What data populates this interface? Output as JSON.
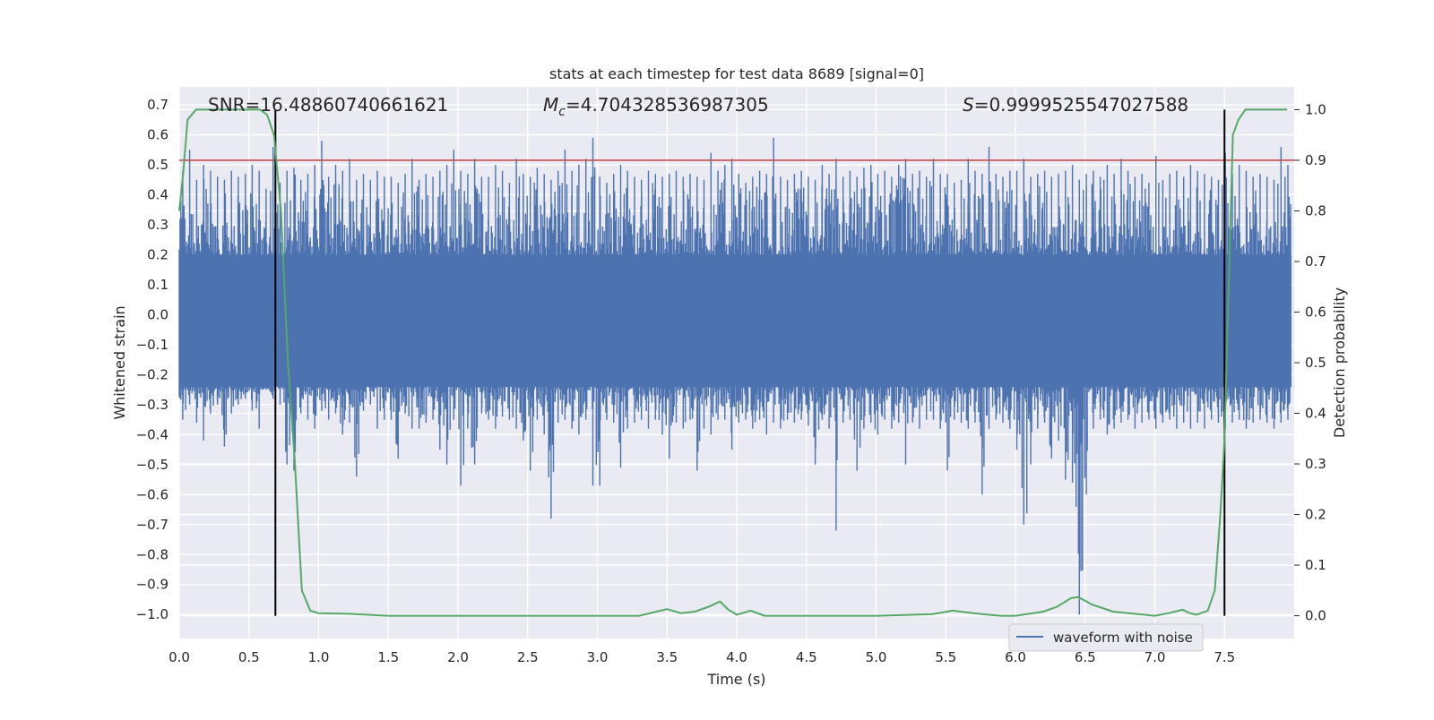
{
  "chart_data": {
    "type": "line",
    "title": "stats at each timestep for test data 8689 [signal=0]",
    "xlabel": "Time (s)",
    "ylabel": "Whitened strain",
    "y2label": "Detection probability",
    "xlim": [
      0.0,
      8.0
    ],
    "ylim": [
      -1.08,
      0.76
    ],
    "y2lim": [
      -0.045,
      1.045
    ],
    "x_ticks": [
      "0.0",
      "0.5",
      "1.0",
      "1.5",
      "2.0",
      "2.5",
      "3.0",
      "3.5",
      "4.0",
      "4.5",
      "5.0",
      "5.5",
      "6.0",
      "6.5",
      "7.0",
      "7.5"
    ],
    "y_ticks": [
      "0.7",
      "0.6",
      "0.5",
      "0.4",
      "0.3",
      "0.2",
      "0.1",
      "0.0",
      "−0.1",
      "−0.2",
      "−0.3",
      "−0.4",
      "−0.5",
      "−0.6",
      "−0.7",
      "−0.8",
      "−0.9",
      "−1.0"
    ],
    "y2_ticks": [
      "1.0",
      "0.9",
      "0.8",
      "0.7",
      "0.6",
      "0.5",
      "0.4",
      "0.3",
      "0.2",
      "0.1",
      "0.0"
    ],
    "grid": true,
    "legend_position": "lower-right",
    "annotations": {
      "snr": "SNR=16.48860740661621",
      "mc_symbol": "M",
      "mc_sub": "c",
      "mc_value": "=4.704328536987305",
      "s_symbol": "S",
      "s_value": "=0.9999525547027588"
    },
    "threshold": {
      "y2": 0.9,
      "color": "#c44e52"
    },
    "vlines": [
      {
        "x": 0.69,
        "color": "#000000"
      },
      {
        "x": 7.5,
        "color": "#000000"
      }
    ],
    "series": [
      {
        "name": "waveform with noise",
        "axis": "left",
        "color": "#4c72b0",
        "envelope_max": [
          0.48,
          0.55,
          0.45,
          0.5,
          0.48,
          0.46,
          0.45,
          0.48,
          0.46,
          0.47,
          0.5,
          0.48,
          0.42,
          0.56,
          0.44,
          0.48,
          0.49,
          0.45,
          0.47,
          0.5,
          0.58,
          0.46,
          0.5,
          0.48,
          0.52,
          0.45,
          0.47,
          0.45,
          0.48,
          0.46,
          0.46,
          0.44,
          0.47,
          0.52,
          0.45,
          0.47,
          0.46,
          0.48,
          0.5,
          0.55,
          0.48,
          0.47,
          0.52,
          0.46,
          0.46,
          0.5,
          0.48,
          0.44,
          0.52,
          0.47,
          0.46,
          0.49,
          0.47,
          0.45,
          0.48,
          0.55,
          0.48,
          0.5,
          0.52,
          0.59,
          0.46,
          0.44,
          0.47,
          0.5,
          0.48,
          0.46,
          0.45,
          0.48,
          0.47,
          0.46,
          0.47,
          0.48,
          0.46,
          0.47,
          0.46,
          0.45,
          0.54,
          0.48,
          0.5,
          0.52,
          0.47,
          0.44,
          0.46,
          0.48,
          0.47,
          0.59,
          0.46,
          0.45,
          0.47,
          0.48,
          0.46,
          0.45,
          0.5,
          0.47,
          0.52,
          0.46,
          0.48,
          0.46,
          0.49,
          0.5,
          0.47,
          0.48,
          0.46,
          0.5,
          0.52,
          0.47,
          0.48,
          0.46,
          0.52,
          0.47,
          0.47,
          0.44,
          0.45,
          0.52,
          0.48,
          0.47,
          0.56,
          0.47,
          0.46,
          0.48,
          0.48,
          0.52,
          0.46,
          0.47,
          0.48,
          0.46,
          0.47,
          0.48,
          0.5,
          0.45,
          0.47,
          0.48,
          0.46,
          0.5,
          0.47,
          0.52,
          0.48,
          0.46,
          0.47,
          0.44,
          0.53,
          0.45,
          0.47,
          0.48,
          0.46,
          0.5,
          0.48,
          0.47,
          0.46,
          0.45,
          0.54,
          0.47,
          0.5,
          0.48,
          0.46,
          0.47,
          0.46,
          0.45,
          0.56,
          0.5
        ],
        "envelope_min": [
          -0.35,
          -0.3,
          -0.36,
          -0.42,
          -0.33,
          -0.3,
          -0.44,
          -0.33,
          -0.3,
          -0.28,
          -0.32,
          -0.38,
          -0.25,
          -0.28,
          -0.3,
          -0.5,
          -0.52,
          -0.33,
          -0.35,
          -0.38,
          -0.32,
          -0.35,
          -0.33,
          -0.4,
          -0.36,
          -0.54,
          -0.32,
          -0.3,
          -0.38,
          -0.35,
          -0.35,
          -0.48,
          -0.33,
          -0.38,
          -0.38,
          -0.36,
          -0.35,
          -0.45,
          -0.5,
          -0.35,
          -0.57,
          -0.38,
          -0.5,
          -0.33,
          -0.35,
          -0.38,
          -0.34,
          -0.35,
          -0.38,
          -0.42,
          -0.52,
          -0.35,
          -0.4,
          -0.68,
          -0.36,
          -0.35,
          -0.38,
          -0.4,
          -0.35,
          -0.57,
          -0.57,
          -0.35,
          -0.36,
          -0.51,
          -0.38,
          -0.36,
          -0.35,
          -0.38,
          -0.35,
          -0.4,
          -0.48,
          -0.36,
          -0.38,
          -0.35,
          -0.52,
          -0.38,
          -0.4,
          -0.35,
          -0.35,
          -0.45,
          -0.36,
          -0.35,
          -0.38,
          -0.35,
          -0.4,
          -0.36,
          -0.38,
          -0.35,
          -0.36,
          -0.35,
          -0.37,
          -0.5,
          -0.35,
          -0.38,
          -0.72,
          -0.36,
          -0.35,
          -0.52,
          -0.38,
          -0.36,
          -0.4,
          -0.35,
          -0.38,
          -0.36,
          -0.5,
          -0.36,
          -0.38,
          -0.35,
          -0.35,
          -0.38,
          -0.52,
          -0.35,
          -0.36,
          -0.38,
          -0.36,
          -0.6,
          -0.38,
          -0.35,
          -0.36,
          -0.38,
          -0.45,
          -0.7,
          -0.5,
          -0.38,
          -0.36,
          -0.48,
          -0.42,
          -0.55,
          -0.56,
          -1.0,
          -0.6,
          -0.38,
          -0.35,
          -0.4,
          -0.38,
          -0.36,
          -0.35,
          -0.38,
          -0.36,
          -0.35,
          -0.38,
          -0.36,
          -0.35,
          -0.38,
          -0.36,
          -0.38,
          -0.36,
          -0.38,
          -0.35,
          -0.36,
          -0.38,
          -0.36,
          -0.35,
          -0.38,
          -0.36,
          -0.35,
          -0.36,
          -0.38,
          -0.36,
          -0.35
        ]
      },
      {
        "axis": "right",
        "color": "#55a868",
        "x": [
          0.0,
          0.03,
          0.06,
          0.12,
          0.2,
          0.3,
          0.4,
          0.5,
          0.58,
          0.63,
          0.68,
          0.73,
          0.78,
          0.83,
          0.88,
          0.94,
          1.0,
          1.2,
          1.5,
          2.0,
          2.5,
          3.0,
          3.3,
          3.5,
          3.6,
          3.7,
          3.8,
          3.88,
          3.94,
          4.0,
          4.1,
          4.2,
          4.4,
          4.6,
          5.0,
          5.4,
          5.55,
          5.7,
          5.8,
          5.9,
          6.0,
          6.2,
          6.3,
          6.4,
          6.45,
          6.55,
          6.7,
          7.0,
          7.1,
          7.2,
          7.25,
          7.3,
          7.38,
          7.43,
          7.47,
          7.5,
          7.53,
          7.56,
          7.6,
          7.65,
          7.75,
          7.85,
          7.95
        ],
        "y": [
          0.8,
          0.88,
          0.98,
          1.0,
          1.0,
          1.0,
          1.0,
          1.0,
          1.0,
          0.99,
          0.95,
          0.8,
          0.5,
          0.3,
          0.05,
          0.01,
          0.005,
          0.004,
          0.0,
          0.0,
          0.0,
          0.0,
          0.0,
          0.013,
          0.005,
          0.008,
          0.018,
          0.028,
          0.012,
          0.002,
          0.01,
          0.0,
          0.0,
          0.0,
          0.0,
          0.003,
          0.01,
          0.005,
          0.002,
          0.0,
          0.0,
          0.008,
          0.018,
          0.035,
          0.037,
          0.022,
          0.008,
          0.0,
          0.005,
          0.012,
          0.005,
          0.002,
          0.01,
          0.05,
          0.2,
          0.35,
          0.65,
          0.95,
          0.98,
          1.0,
          1.0,
          1.0,
          1.0
        ]
      }
    ]
  }
}
